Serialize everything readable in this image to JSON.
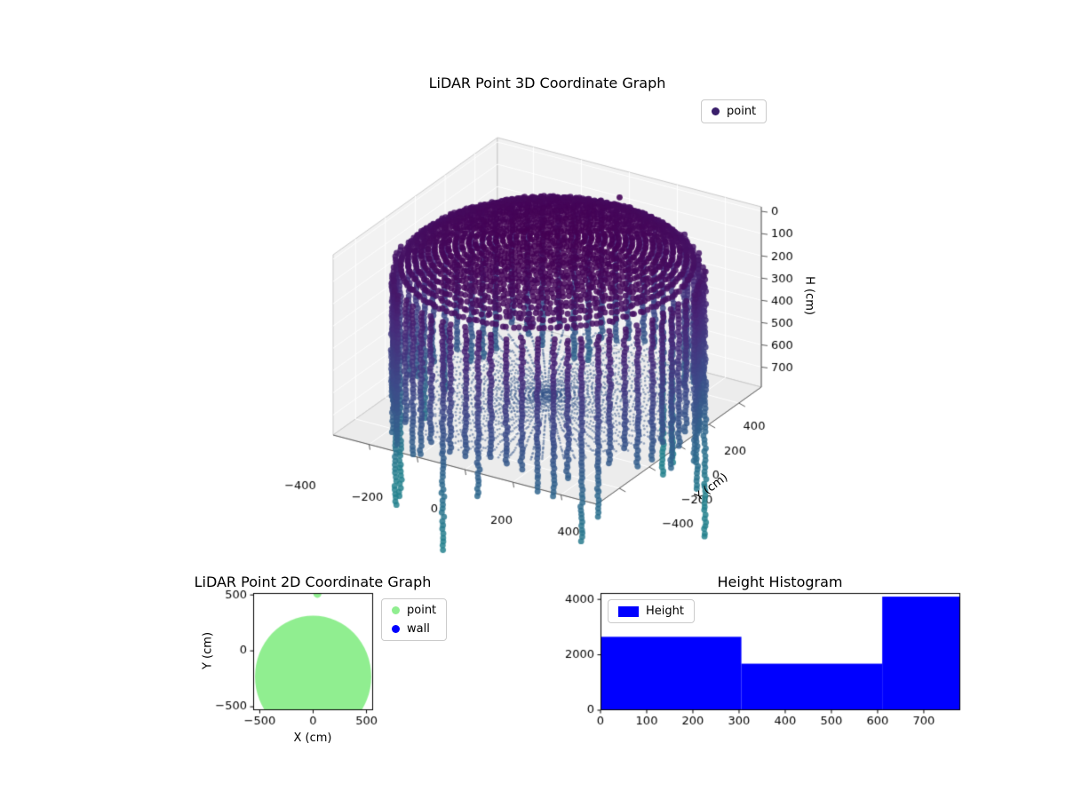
{
  "figure": {
    "background": "#ffffff"
  },
  "chart_data": [
    {
      "id": "lidar_3d",
      "type": "scatter",
      "projection": "3d",
      "title": "LiDAR Point 3D Coordinate Graph",
      "legend": {
        "items": [
          {
            "label": "point",
            "marker": "dot",
            "color": "#3a1f6b"
          }
        ]
      },
      "axes": {
        "x": {
          "label": "",
          "range": [
            -550,
            550
          ],
          "ticks": [
            -400,
            -200,
            0,
            200,
            400
          ]
        },
        "y": {
          "label": "Y (cm)",
          "range": [
            -550,
            550
          ],
          "ticks": [
            -400,
            -200,
            0,
            200,
            400
          ]
        },
        "z": {
          "label": "H (cm)",
          "range": [
            -20,
            790
          ],
          "ticks": [
            0,
            100,
            200,
            300,
            400,
            500,
            600,
            700
          ],
          "inverted": true
        }
      },
      "colormap": "viridis",
      "color_by": "height",
      "point_cloud": {
        "wall": {
          "shape": "cylinder",
          "radius_cm": 550,
          "h_top_cm": 150,
          "h_bottom_cm": [
            700,
            1400
          ],
          "columns": 64,
          "point_spacing_cm": 16
        },
        "ceiling": {
          "shape": "dome",
          "radius_cm": 530,
          "apex_h_cm": 0,
          "edge_h_cm": 155,
          "ring_spacing_cm": 24
        },
        "floor": {
          "shape": "radial_disc",
          "radius_cm": 535,
          "h_cm": 715,
          "rays": 84,
          "radial_spacing_cm": 15
        },
        "noise_points": 26,
        "marker_px": 7,
        "floor_marker_px": 3
      }
    },
    {
      "id": "lidar_2d",
      "type": "scatter",
      "title": "LiDAR Point 2D Coordinate Graph",
      "xlabel": "X (cm)",
      "ylabel": "Y (cm)",
      "xlim": [
        -562,
        562
      ],
      "ylim": [
        -531,
        517
      ],
      "xticks": [
        -500,
        0,
        500
      ],
      "yticks": [
        500,
        0,
        -500
      ],
      "legend": {
        "items": [
          {
            "label": "point",
            "marker": "dot",
            "color": "#90ee90"
          },
          {
            "label": "wall",
            "marker": "dot",
            "color": "#0000ff"
          }
        ]
      },
      "point_region": {
        "shape": "disc",
        "cx_cm": 0,
        "cy_cm": -230,
        "radius_cm": 545,
        "color": "#90ee90"
      },
      "outlier": {
        "x_cm": 40,
        "y_cm": 510,
        "color": "#90ee90"
      }
    },
    {
      "id": "height_histogram",
      "type": "histogram",
      "title": "Height Histogram",
      "legend": {
        "items": [
          {
            "label": "Height",
            "marker": "patch",
            "color": "#0000ff"
          }
        ]
      },
      "bin_edges": [
        0,
        305,
        610,
        779
      ],
      "counts": [
        2650,
        1680,
        4100
      ],
      "bar_color": "#0000ff",
      "xlim": [
        0,
        779
      ],
      "ylim": [
        0,
        4230
      ],
      "xticks": [
        0,
        100,
        200,
        300,
        400,
        500,
        600,
        700
      ],
      "yticks": [
        0,
        2000,
        4000
      ]
    }
  ]
}
